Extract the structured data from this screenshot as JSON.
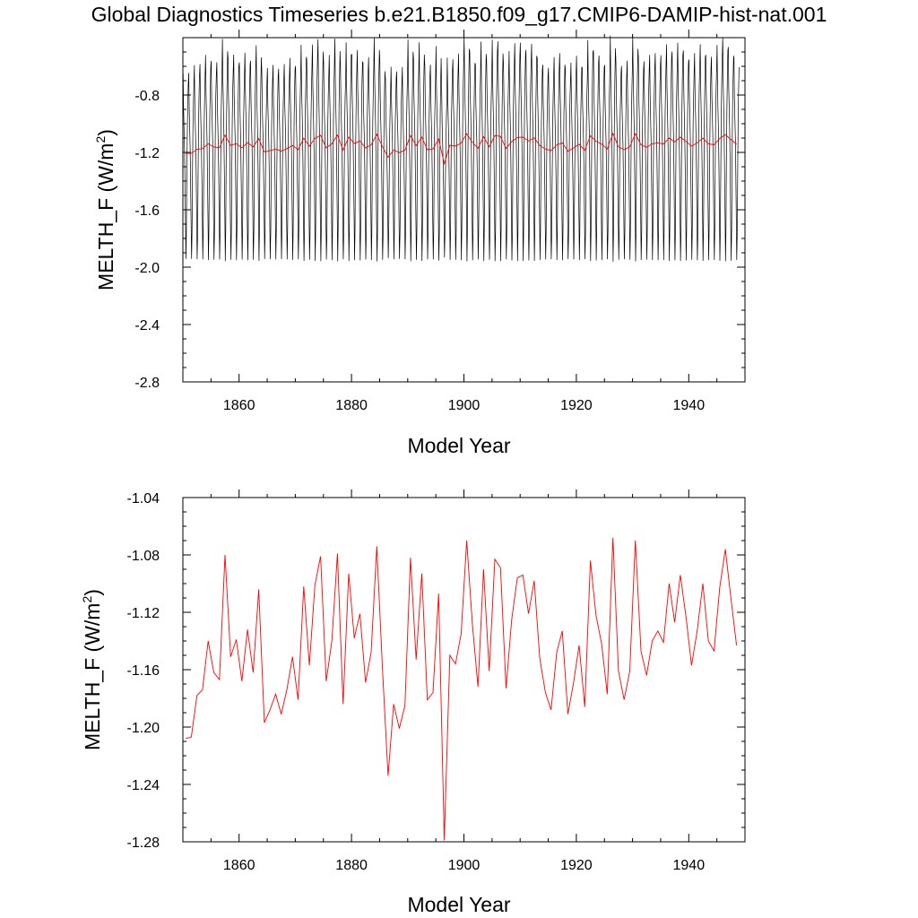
{
  "title": "Global Diagnostics Timeseries b.e21.B1850.f09_g17.CMIP6-DAMIP-hist-nat.001",
  "colors": {
    "annual": "#ff0000",
    "monthly": "#000000",
    "frame": "#000000"
  },
  "chart_data": [
    {
      "type": "line",
      "xlabel": "Model Year",
      "ylabel_main": "MELTH_F (W/m",
      "ylabel_sup": "2",
      "ylabel_end": ")",
      "xlim": [
        1850,
        1950
      ],
      "ylim": [
        -2.8,
        -0.4
      ],
      "xticks": [
        1860,
        1880,
        1900,
        1920,
        1940
      ],
      "xtick_labels": [
        "1860",
        "1880",
        "1900",
        "1920",
        "1940"
      ],
      "yticks": [
        -2.8,
        -2.4,
        -2.0,
        -1.6,
        -1.2,
        -0.8
      ],
      "ytick_labels": [
        "-2.8",
        "-2.4",
        "-2.0",
        "-1.6",
        "-1.2",
        "-0.8"
      ],
      "series": [
        {
          "key": "monthly",
          "color": "#000000",
          "x_start": 1850.0417,
          "x_step": 0.08333,
          "monthly_climatology": [
            -0.62,
            -0.9,
            -1.05,
            -1.2,
            -1.45,
            -1.75,
            -2.05,
            -1.85,
            -1.4,
            -1.05,
            -0.85,
            -0.7
          ],
          "annual_anchor": "annual_mean"
        },
        {
          "key": "annual",
          "color": "#ff0000",
          "x_start": 1850.5,
          "x_step": 1,
          "values": "annual_mean"
        }
      ]
    },
    {
      "type": "line",
      "xlabel": "Model Year",
      "ylabel_main": "MELTH_F (W/m",
      "ylabel_sup": "2",
      "ylabel_end": ")",
      "xlim": [
        1850,
        1950
      ],
      "ylim": [
        -1.28,
        -1.04
      ],
      "xticks": [
        1860,
        1880,
        1900,
        1920,
        1940
      ],
      "xtick_labels": [
        "1860",
        "1880",
        "1900",
        "1920",
        "1940"
      ],
      "yticks": [
        -1.28,
        -1.24,
        -1.2,
        -1.16,
        -1.12,
        -1.08,
        -1.04
      ],
      "ytick_labels": [
        "-1.28",
        "-1.24",
        "-1.20",
        "-1.16",
        "-1.12",
        "-1.08",
        "-1.04"
      ],
      "series": [
        {
          "key": "annual",
          "color": "#ff0000",
          "x_start": 1850.5,
          "x_step": 1,
          "values": "annual_mean"
        }
      ]
    }
  ],
  "annual_mean": [
    -1.208,
    -1.207,
    -1.178,
    -1.174,
    -1.14,
    -1.162,
    -1.167,
    -1.08,
    -1.151,
    -1.139,
    -1.168,
    -1.132,
    -1.162,
    -1.104,
    -1.197,
    -1.188,
    -1.177,
    -1.191,
    -1.174,
    -1.151,
    -1.181,
    -1.102,
    -1.157,
    -1.101,
    -1.081,
    -1.168,
    -1.14,
    -1.079,
    -1.184,
    -1.093,
    -1.138,
    -1.121,
    -1.169,
    -1.148,
    -1.074,
    -1.159,
    -1.234,
    -1.184,
    -1.201,
    -1.185,
    -1.082,
    -1.153,
    -1.093,
    -1.181,
    -1.176,
    -1.107,
    -1.279,
    -1.15,
    -1.156,
    -1.135,
    -1.07,
    -1.128,
    -1.172,
    -1.09,
    -1.161,
    -1.083,
    -1.089,
    -1.173,
    -1.125,
    -1.096,
    -1.094,
    -1.121,
    -1.098,
    -1.152,
    -1.176,
    -1.188,
    -1.148,
    -1.133,
    -1.191,
    -1.169,
    -1.143,
    -1.186,
    -1.084,
    -1.122,
    -1.142,
    -1.177,
    -1.068,
    -1.161,
    -1.181,
    -1.161,
    -1.07,
    -1.147,
    -1.164,
    -1.14,
    -1.133,
    -1.141,
    -1.1,
    -1.127,
    -1.094,
    -1.123,
    -1.157,
    -1.133,
    -1.1,
    -1.14,
    -1.147,
    -1.103,
    -1.076,
    -1.11,
    -1.143
  ]
}
